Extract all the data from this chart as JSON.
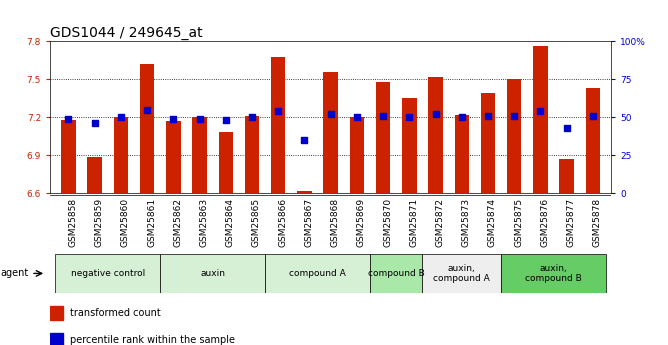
{
  "title": "GDS1044 / 249645_at",
  "samples": [
    "GSM25858",
    "GSM25859",
    "GSM25860",
    "GSM25861",
    "GSM25862",
    "GSM25863",
    "GSM25864",
    "GSM25865",
    "GSM25866",
    "GSM25867",
    "GSM25868",
    "GSM25869",
    "GSM25870",
    "GSM25871",
    "GSM25872",
    "GSM25873",
    "GSM25874",
    "GSM25875",
    "GSM25876",
    "GSM25877",
    "GSM25878"
  ],
  "bar_values": [
    7.18,
    6.89,
    7.2,
    7.62,
    7.17,
    7.2,
    7.08,
    7.21,
    7.68,
    6.62,
    7.56,
    7.2,
    7.48,
    7.35,
    7.52,
    7.22,
    7.39,
    7.5,
    7.76,
    6.87,
    7.43
  ],
  "percentile_values": [
    49,
    46,
    50,
    55,
    49,
    49,
    48,
    50,
    54,
    35,
    52,
    50,
    51,
    50,
    52,
    50,
    51,
    51,
    54,
    43,
    51
  ],
  "bar_color": "#cc2200",
  "dot_color": "#0000cc",
  "ylim_left": [
    6.6,
    7.8
  ],
  "ylim_right": [
    0,
    100
  ],
  "yticks_left": [
    6.6,
    6.9,
    7.2,
    7.5,
    7.8
  ],
  "yticks_right": [
    0,
    25,
    50,
    75,
    100
  ],
  "ytick_labels_right": [
    "0",
    "25",
    "50",
    "75",
    "100%"
  ],
  "agent_groups": [
    {
      "label": "negative control",
      "start": 0,
      "end": 3,
      "color": "#d6f0d6"
    },
    {
      "label": "auxin",
      "start": 4,
      "end": 7,
      "color": "#d6f0d6"
    },
    {
      "label": "compound A",
      "start": 8,
      "end": 11,
      "color": "#d6f0d6"
    },
    {
      "label": "compound B",
      "start": 12,
      "end": 13,
      "color": "#aae8aa"
    },
    {
      "label": "auxin,\ncompound A",
      "start": 14,
      "end": 16,
      "color": "#eeeeee"
    },
    {
      "label": "auxin,\ncompound B",
      "start": 17,
      "end": 20,
      "color": "#77dd77"
    }
  ],
  "bar_width": 0.55,
  "dot_size": 18,
  "background_color": "#ffffff",
  "title_fontsize": 10,
  "tick_fontsize": 6.5,
  "legend_items": [
    "transformed count",
    "percentile rank within the sample"
  ],
  "legend_colors": [
    "#cc2200",
    "#0000cc"
  ]
}
